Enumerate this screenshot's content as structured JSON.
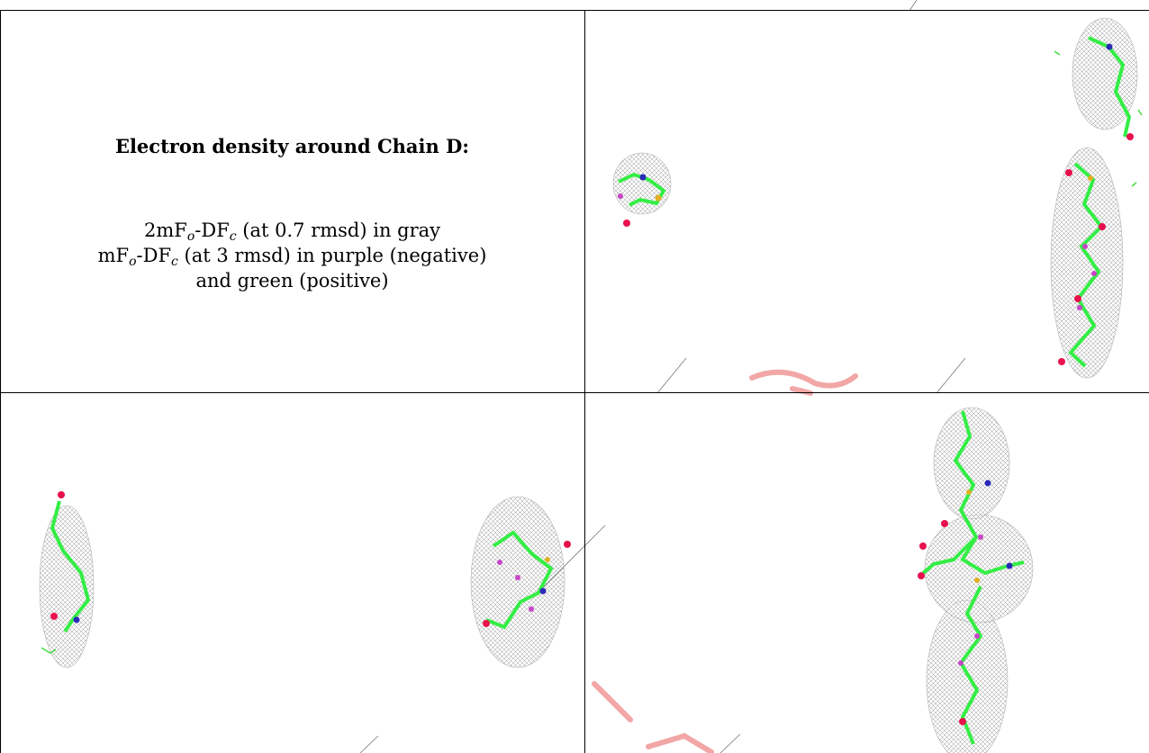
{
  "title": "Electron density around Chain D:",
  "legend": {
    "line1": {
      "prefix": "2mF",
      "sub_o": "o",
      "mid": "-DF",
      "sub_c": "c",
      "suffix": " (at 0.7 rmsd) in gray"
    },
    "line2": {
      "prefix": "mF",
      "sub_o": "o",
      "mid": "-DF",
      "sub_c": "c",
      "suffix": " (at 3 rmsd) in purple (negative)"
    },
    "line3": "and green (positive)"
  },
  "colors": {
    "mesh": "#9a9a9a",
    "carbon": "#33ee44",
    "oxygen": "#e8114d",
    "nitrogen": "#2a2ab8",
    "sulfur": "#e0b020",
    "negative": "#c844c8",
    "positive": "#44dd44",
    "watermark": "#f3a0a0"
  },
  "panels": [
    {
      "name": "top-right-density-view",
      "image": "density-view"
    },
    {
      "name": "bottom-left-density-view",
      "image": "density-view"
    },
    {
      "name": "bottom-right-density-view",
      "image": "density-view"
    }
  ]
}
